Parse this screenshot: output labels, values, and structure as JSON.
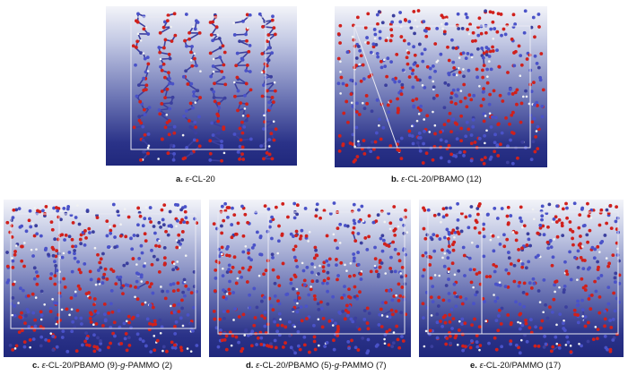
{
  "figure": {
    "panels": [
      {
        "id": "a",
        "letter": "a.",
        "eps": "ε",
        "text": "-CL-20"
      },
      {
        "id": "b",
        "letter": "b.",
        "eps": "ε",
        "text": "-CL-20/PBAMO (12)"
      },
      {
        "id": "c",
        "letter": "c.",
        "eps": "ε",
        "text": "-CL-20/PBAMO (9)-",
        "g": "g",
        "text2": "-PAMMO (2)"
      },
      {
        "id": "d",
        "letter": "d.",
        "eps": "ε",
        "text": "-CL-20/PBAMO (5)-",
        "g": "g",
        "text2": "-PAMMO (7)"
      },
      {
        "id": "e",
        "letter": "e.",
        "eps": "ε",
        "text": "-CL-20/PAMMO (17)"
      }
    ],
    "colors": {
      "carbon": "#3b3f9e",
      "oxygen": "#d0201c",
      "hydrogen": "#f2f2f2",
      "nitrogen": "#4a52c8",
      "box": "#e8e8f2"
    }
  }
}
